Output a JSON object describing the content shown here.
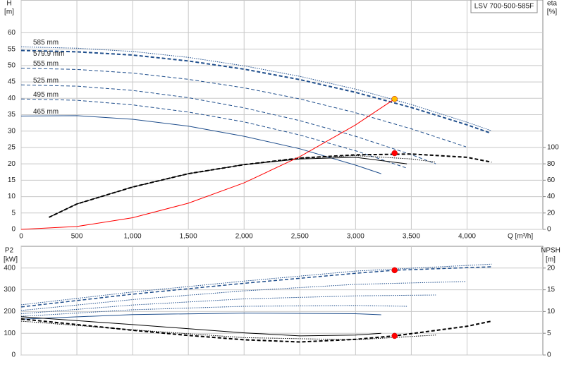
{
  "chart_data": [
    {
      "type": "line",
      "title": "LSV 700-500-585F",
      "ylabel": "H",
      "yunit": "[m]",
      "y2label": "eta",
      "y2unit": "[%]",
      "xlabel": "Q [m³/h]",
      "xlim": [
        0,
        4680
      ],
      "xticks": [
        0,
        500,
        {
          "value": 1000,
          "label": "1,000"
        },
        {
          "value": 1500,
          "label": "1,500"
        },
        {
          "value": 2000,
          "label": "2,000"
        },
        {
          "value": 2500,
          "label": "2,500"
        },
        {
          "value": 3000,
          "label": "3,000"
        },
        {
          "value": 3500,
          "label": "3,500"
        },
        {
          "value": 4000,
          "label": "4,000"
        }
      ],
      "show_xtick_labels": true,
      "ylim": [
        0,
        70
      ],
      "yticks": [
        0,
        5,
        10,
        15,
        20,
        25,
        30,
        35,
        40,
        45,
        50,
        55,
        60
      ],
      "y2lim": [
        0,
        280
      ],
      "y2ticks": [
        0,
        20,
        40,
        60,
        80,
        100
      ],
      "grid": true,
      "series": [
        {
          "name": "585 mm",
          "color": "#1f4e8c",
          "line_style": "dotted",
          "line_width": 1,
          "x": [
            0,
            500,
            1000,
            1500,
            2000,
            2500,
            3000,
            3500,
            4000,
            4220
          ],
          "values": [
            55.7,
            55.3,
            54.3,
            52.5,
            49.9,
            46.7,
            42.8,
            38.1,
            32.7,
            30.1
          ]
        },
        {
          "name": "579.9 mm",
          "color": "#1f4e8c",
          "line_style": "dashed",
          "line_width": 2,
          "x": [
            0,
            500,
            1000,
            1500,
            2000,
            2500,
            3000,
            3500,
            4000,
            4200
          ],
          "values": [
            54.6,
            54.2,
            53.2,
            51.4,
            48.9,
            45.7,
            41.8,
            37.2,
            31.9,
            29.5
          ]
        },
        {
          "name": "555 mm",
          "color": "#1f4e8c",
          "line_style": "dashed",
          "line_width": 1,
          "x": [
            0,
            500,
            1000,
            1500,
            2000,
            2500,
            3000,
            3500,
            3990
          ],
          "values": [
            49.2,
            48.8,
            47.7,
            45.8,
            43.2,
            39.8,
            35.6,
            30.7,
            25.2
          ]
        },
        {
          "name": "525 mm",
          "color": "#1f4e8c",
          "line_style": "dashed",
          "line_width": 1,
          "x": [
            0,
            500,
            1000,
            1500,
            2000,
            2500,
            3000,
            3500,
            3720
          ],
          "values": [
            44.1,
            43.7,
            42.4,
            40.2,
            37.1,
            33.2,
            28.4,
            22.8,
            20.0
          ]
        },
        {
          "name": "495 mm",
          "color": "#1f4e8c",
          "line_style": "dashed",
          "line_width": 1,
          "x": [
            0,
            500,
            1000,
            1500,
            2000,
            2500,
            3000,
            3460
          ],
          "values": [
            39.8,
            39.4,
            38.0,
            35.8,
            32.8,
            28.8,
            24.0,
            18.7
          ]
        },
        {
          "name": "465 mm",
          "color": "#1f4e8c",
          "line_style": "solid",
          "line_width": 1,
          "x": [
            0,
            500,
            1000,
            1500,
            2000,
            2500,
            3000,
            3230
          ],
          "values": [
            34.6,
            34.7,
            33.6,
            31.5,
            28.4,
            24.6,
            19.6,
            17.0
          ]
        },
        {
          "color": "#000000",
          "line_style": "dashed",
          "line_width": 2,
          "axis": "y2",
          "x": [
            250,
            500,
            1000,
            1500,
            2000,
            2500,
            3000,
            3500,
            4000,
            4220
          ],
          "values": [
            14.7,
            31,
            51.7,
            68,
            79,
            87,
            91,
            92,
            88,
            82
          ]
        },
        {
          "color": "#000000",
          "line_style": "dotted",
          "line_width": 1,
          "axis": "y2",
          "x": [
            250,
            500,
            1000,
            1500,
            2000,
            2500,
            3000,
            3500,
            3720
          ],
          "values": [
            14.7,
            31,
            51.7,
            68,
            79,
            87,
            90,
            86,
            82
          ]
        },
        {
          "color": "#000000",
          "line_style": "solid",
          "line_width": 1,
          "axis": "y2",
          "x": [
            250,
            500,
            1000,
            1500,
            2000,
            2500,
            3000,
            3460
          ],
          "values": [
            14.7,
            31,
            51.7,
            68,
            79,
            86,
            88,
            80
          ]
        },
        {
          "color": "#ff0000",
          "line_style": "solid",
          "line_width": 1,
          "x": [
            0,
            500,
            1000,
            1500,
            2000,
            2500,
            3000,
            3350
          ],
          "values": [
            0,
            0.89,
            3.55,
            7.98,
            14.2,
            22.2,
            31.9,
            39.8
          ]
        }
      ],
      "markers": [
        {
          "x": 3350,
          "y": 39.8,
          "color": "#ffc000"
        },
        {
          "x": 3350,
          "y": 93,
          "color": "#ff0000",
          "axis": "y2"
        }
      ]
    },
    {
      "type": "line",
      "ylabel": "P2",
      "yunit": "[kW]",
      "y2label": "NPSH",
      "y2unit": "[m]",
      "xlim": [
        0,
        4680
      ],
      "xticks": [
        0,
        500,
        1000,
        1500,
        2000,
        2500,
        3000,
        3500,
        4000
      ],
      "show_xtick_labels": false,
      "ylim": [
        0,
        500
      ],
      "yticks": [
        0,
        100,
        200,
        300,
        400
      ],
      "y2lim": [
        0,
        25
      ],
      "y2ticks": [
        0,
        5,
        10,
        15,
        20
      ],
      "grid": true,
      "series": [
        {
          "color": "#1f4e8c",
          "line_style": "dotted",
          "line_width": 1,
          "x": [
            0,
            1000,
            2000,
            3000,
            4220
          ],
          "values": [
            231,
            290,
            340,
            386,
            418
          ]
        },
        {
          "color": "#1f4e8c",
          "line_style": "dashed",
          "line_width": 1.5,
          "x": [
            0,
            1000,
            2000,
            3000,
            3350,
            4220
          ],
          "values": [
            221,
            280,
            330,
            376,
            390,
            406
          ]
        },
        {
          "color": "#1f4e8c",
          "line_style": "dotted",
          "line_width": 1,
          "x": [
            0,
            1000,
            2000,
            3000,
            3990
          ],
          "values": [
            205,
            255,
            295,
            325,
            338
          ]
        },
        {
          "color": "#1f4e8c",
          "line_style": "dotted",
          "line_width": 1,
          "x": [
            0,
            1000,
            2000,
            3000,
            3720
          ],
          "values": [
            190,
            230,
            258,
            272,
            276
          ]
        },
        {
          "color": "#1f4e8c",
          "line_style": "dotted",
          "line_width": 1,
          "x": [
            0,
            1000,
            2000,
            3000,
            3460
          ],
          "values": [
            178,
            208,
            224,
            228,
            224
          ]
        },
        {
          "color": "#1f4e8c",
          "line_style": "solid",
          "line_width": 1,
          "x": [
            0,
            1000,
            2000,
            3000,
            3230
          ],
          "values": [
            165,
            186,
            193,
            190,
            185
          ]
        },
        {
          "color": "#000000",
          "line_style": "dashed",
          "line_width": 2,
          "axis": "y2",
          "x": [
            0,
            500,
            1000,
            1500,
            2000,
            2500,
            3000,
            3350,
            4000,
            4220
          ],
          "values": [
            8.3,
            7.0,
            5.7,
            4.5,
            3.5,
            3.0,
            3.6,
            4.4,
            6.6,
            7.8
          ]
        },
        {
          "color": "#000000",
          "line_style": "dotted",
          "line_width": 1,
          "axis": "y2",
          "x": [
            0,
            1000,
            2000,
            3000,
            3720
          ],
          "values": [
            7.8,
            5.8,
            4.0,
            3.5,
            4.6
          ]
        },
        {
          "color": "#000000",
          "line_style": "solid",
          "line_width": 1,
          "axis": "y2",
          "x": [
            0,
            1000,
            2000,
            2500,
            3000,
            3230
          ],
          "values": [
            8.8,
            7.0,
            5.1,
            4.4,
            4.6,
            5.0
          ]
        }
      ],
      "markers": [
        {
          "x": 3350,
          "y": 390,
          "color": "#ff0000"
        },
        {
          "x": 3350,
          "y": 4.4,
          "color": "#ff0000",
          "axis": "y2"
        }
      ]
    }
  ]
}
